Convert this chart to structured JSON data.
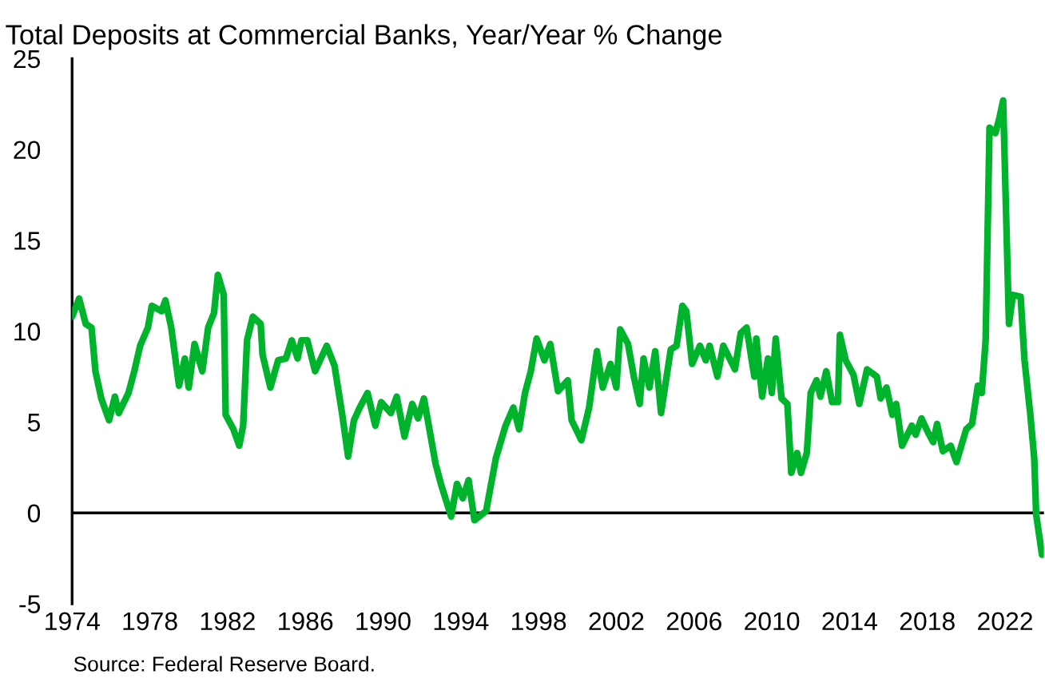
{
  "chart_data": {
    "type": "line",
    "title": "Total Deposits at Commercial Banks, Year/Year % Change",
    "annotations": [
      "Source: Federal Reserve Board."
    ],
    "xlim": [
      1974,
      2024
    ],
    "xticks": [
      1974,
      1978,
      1982,
      1986,
      1990,
      1994,
      1998,
      2002,
      2006,
      2010,
      2014,
      2018,
      2022
    ],
    "ylim": [
      -5,
      25
    ],
    "yticks": [
      -5,
      0,
      5,
      10,
      15,
      20,
      25
    ],
    "grid": false,
    "legend": false,
    "marker": "none",
    "line_style": "solid",
    "ref_lines": [
      {
        "axis": "y",
        "value": 0,
        "color": "#000000"
      }
    ],
    "series": [
      {
        "color": "#00b32c",
        "x": [
          1974.0,
          1974.36,
          1974.7,
          1975.0,
          1975.2,
          1975.5,
          1975.9,
          1976.2,
          1976.4,
          1976.9,
          1977.2,
          1977.5,
          1977.9,
          1978.1,
          1978.6,
          1978.8,
          1979.1,
          1979.5,
          1979.8,
          1980.0,
          1980.3,
          1980.7,
          1981.0,
          1981.3,
          1981.5,
          1981.8,
          1981.9,
          1982.3,
          1982.6,
          1982.8,
          1983.0,
          1983.3,
          1983.7,
          1983.8,
          1984.2,
          1984.6,
          1985.0,
          1985.3,
          1985.6,
          1985.8,
          1986.1,
          1986.5,
          1987.1,
          1987.5,
          1987.9,
          1988.2,
          1988.5,
          1988.8,
          1989.2,
          1989.6,
          1989.9,
          1990.4,
          1990.7,
          1991.1,
          1991.5,
          1991.8,
          1992.1,
          1992.7,
          1993.0,
          1993.5,
          1993.8,
          1994.1,
          1994.4,
          1994.7,
          1995.3,
          1995.8,
          1996.3,
          1996.7,
          1997.0,
          1997.3,
          1997.6,
          1997.9,
          1998.3,
          1998.6,
          1999.0,
          1999.5,
          1999.7,
          2000.2,
          2000.6,
          2001.0,
          2001.3,
          2001.7,
          2002.0,
          2002.2,
          2002.6,
          2002.9,
          2003.2,
          2003.4,
          2003.7,
          2004.0,
          2004.3,
          2004.8,
          2005.1,
          2005.4,
          2005.6,
          2005.9,
          2006.3,
          2006.6,
          2006.8,
          2007.2,
          2007.5,
          2008.1,
          2008.4,
          2008.7,
          2009.1,
          2009.2,
          2009.5,
          2009.8,
          2010.0,
          2010.2,
          2010.5,
          2010.8,
          2011.0,
          2011.3,
          2011.5,
          2011.8,
          2012.0,
          2012.3,
          2012.5,
          2012.8,
          2013.1,
          2013.4,
          2013.5,
          2013.8,
          2014.2,
          2014.5,
          2014.9,
          2015.4,
          2015.6,
          2015.9,
          2016.2,
          2016.4,
          2016.7,
          2017.2,
          2017.4,
          2017.7,
          2018.0,
          2018.3,
          2018.5,
          2018.8,
          2019.2,
          2019.5,
          2020.0,
          2020.3,
          2020.6,
          2020.8,
          2021.0,
          2021.2,
          2021.5,
          2021.7,
          2021.9,
          2022.2,
          2022.4,
          2022.8,
          2023.0,
          2023.3,
          2023.5,
          2023.6,
          2023.9
        ],
        "values": [
          10.8,
          11.8,
          10.4,
          10.2,
          7.8,
          6.3,
          5.1,
          6.4,
          5.5,
          6.6,
          7.8,
          9.2,
          10.2,
          11.4,
          11.1,
          11.7,
          10.2,
          7.0,
          8.5,
          6.9,
          9.3,
          7.8,
          10.2,
          11.0,
          13.1,
          12.0,
          5.4,
          4.6,
          3.7,
          4.8,
          9.5,
          10.8,
          10.4,
          8.7,
          6.9,
          8.4,
          8.5,
          9.5,
          8.5,
          9.5,
          9.5,
          7.8,
          9.2,
          8.1,
          5.4,
          3.1,
          5.1,
          5.8,
          6.6,
          4.8,
          6.1,
          5.5,
          6.4,
          4.2,
          6.0,
          5.2,
          6.3,
          2.7,
          1.5,
          -0.2,
          1.6,
          0.8,
          1.8,
          -0.4,
          0.1,
          3.0,
          4.8,
          5.8,
          4.6,
          6.6,
          7.8,
          9.6,
          8.4,
          9.3,
          6.7,
          7.3,
          5.1,
          4.0,
          5.8,
          8.9,
          6.9,
          8.2,
          6.9,
          10.1,
          9.3,
          7.5,
          6.0,
          8.5,
          6.9,
          8.9,
          5.5,
          9.0,
          9.2,
          11.4,
          11.1,
          8.2,
          9.2,
          8.4,
          9.2,
          7.5,
          9.2,
          7.9,
          9.9,
          10.2,
          7.5,
          9.6,
          6.4,
          8.5,
          6.6,
          9.6,
          6.3,
          6.0,
          2.2,
          3.3,
          2.2,
          3.3,
          6.6,
          7.3,
          6.4,
          7.8,
          6.1,
          6.1,
          9.8,
          8.4,
          7.6,
          6.0,
          7.9,
          7.5,
          6.3,
          6.9,
          5.4,
          6.0,
          3.7,
          4.8,
          4.3,
          5.2,
          4.5,
          3.9,
          4.9,
          3.4,
          3.7,
          2.8,
          4.6,
          4.9,
          7.0,
          6.6,
          9.5,
          21.2,
          20.9,
          21.7,
          22.7,
          10.4,
          12.0,
          11.9,
          8.4,
          5.4,
          3.0,
          -0.1,
          -2.3
        ]
      }
    ]
  }
}
